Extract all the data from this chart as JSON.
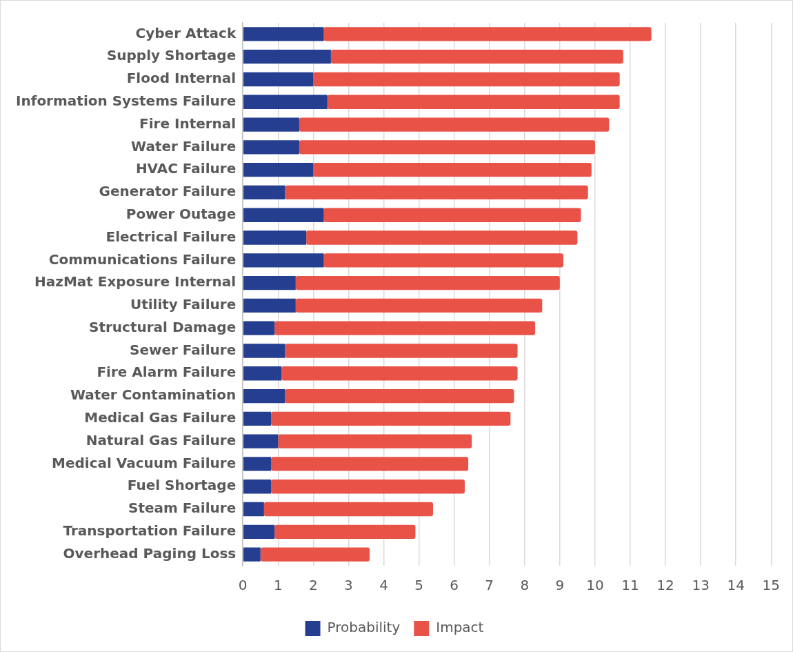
{
  "chart_data": {
    "type": "bar",
    "orientation": "horizontal",
    "stacked": true,
    "categories": [
      "Cyber Attack",
      "Supply Shortage",
      "Flood Internal",
      "Information Systems Failure",
      "Fire Internal",
      "Water Failure",
      "HVAC Failure",
      "Generator Failure",
      "Power Outage",
      "Electrical Failure",
      "Communications Failure",
      "HazMat Exposure Internal",
      "Utility Failure",
      "Structural Damage",
      "Sewer Failure",
      "Fire Alarm Failure",
      "Water Contamination",
      "Medical Gas Failure",
      "Natural Gas Failure",
      "Medical Vacuum Failure",
      "Fuel Shortage",
      "Steam Failure",
      "Transportation Failure",
      "Overhead Paging Loss"
    ],
    "series": [
      {
        "name": "Probability",
        "color": "#253e8f",
        "values": [
          2.3,
          2.5,
          2.0,
          2.4,
          1.6,
          1.6,
          2.0,
          1.2,
          2.3,
          1.8,
          2.3,
          1.5,
          1.5,
          0.9,
          1.2,
          1.1,
          1.2,
          0.8,
          1.0,
          0.8,
          0.8,
          0.6,
          0.9,
          0.5
        ]
      },
      {
        "name": "Impact",
        "color": "#e95247",
        "values": [
          9.3,
          8.3,
          8.7,
          8.3,
          8.8,
          8.4,
          7.9,
          8.6,
          7.3,
          7.7,
          6.8,
          7.5,
          7.0,
          7.4,
          6.6,
          6.7,
          6.5,
          6.8,
          5.5,
          5.6,
          5.5,
          4.8,
          4.0,
          3.1
        ]
      }
    ],
    "xlim": [
      0,
      15
    ],
    "xticks": [
      0,
      1,
      2,
      3,
      4,
      5,
      6,
      7,
      8,
      9,
      10,
      11,
      12,
      13,
      14,
      15
    ],
    "grid": "x",
    "legend": "bottom"
  }
}
